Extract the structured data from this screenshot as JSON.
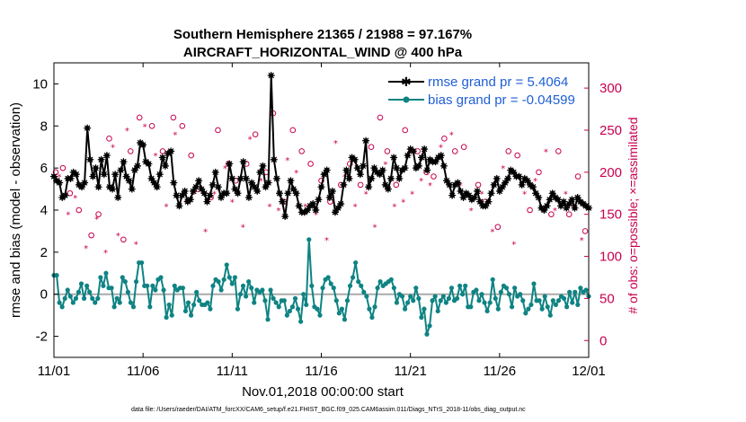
{
  "chart_data": {
    "type": "line",
    "title_line1": "Southern Hemisphere 21365 / 21988 = 97.167%",
    "title_line2": "AIRCRAFT_HORIZONTAL_WIND @ 400 hPa",
    "xlabel": "Nov.01,2018 00:00:00 start",
    "ylabel": "rmse and bias (model - observation)",
    "y2label": "# of obs: o=possible; ×=assimilated",
    "footer": "data file: /Users/raeder/DAI/ATM_forcXX/CAM6_setup/f.e21.FHIST_BGC.f09_025.CAM6assim.011/Diags_NTrS_2018-11/obs_diag_output.nc",
    "x_ticks": [
      "11/01",
      "11/06",
      "11/11",
      "11/16",
      "11/21",
      "11/26",
      "12/01"
    ],
    "x_range_days": [
      0,
      30
    ],
    "ylim": [
      -3,
      11
    ],
    "y_ticks": [
      "-2",
      "0",
      "2",
      "4",
      "6",
      "8",
      "10"
    ],
    "y2lim": [
      -20,
      330
    ],
    "y2_ticks": [
      "0",
      "50",
      "100",
      "150",
      "200",
      "250",
      "300"
    ],
    "colors": {
      "rmse": "#000000",
      "bias": "#0f8383",
      "obs": "#c8004f",
      "zero_line": "#aaaaaa",
      "legend_text": "#1f5fd6"
    },
    "series": [
      {
        "name": "rmse grand pr = 5.4064",
        "values": [
          5.6,
          5.4,
          5.3,
          4.6,
          4.7,
          5.5,
          5.5,
          5.8,
          5.7,
          5.2,
          5.1,
          5.3,
          7.9,
          6.4,
          5.6,
          6.0,
          5.1,
          6.4,
          5.7,
          6.6,
          5.1,
          5.0,
          5.7,
          4.6,
          5.9,
          6.3,
          5.6,
          5.4,
          5.0,
          5.9,
          6.1,
          7.2,
          7.1,
          6.3,
          6.2,
          5.5,
          5.3,
          5.1,
          5.7,
          6.5,
          6.1,
          6.7,
          6.8,
          5.3,
          4.7,
          4.2,
          4.7,
          4.9,
          4.4,
          4.5,
          4.9,
          5.1,
          5.4,
          5.0,
          4.8,
          4.4,
          4.7,
          5.2,
          5.8,
          5.1,
          4.6,
          4.8,
          4.8,
          6.2,
          5.5,
          5.0,
          4.8,
          5.5,
          6.3,
          5.5,
          4.6,
          5.3,
          5.1,
          4.9,
          5.8,
          6.1,
          5.1,
          5.3,
          10.4,
          6.4,
          5.5,
          4.8,
          4.4,
          3.7,
          4.8,
          5.4,
          5.0,
          4.8,
          4.2,
          3.9,
          3.9,
          4.0,
          4.2,
          4.3,
          4.0,
          4.5,
          5.1,
          5.7,
          5.9,
          4.6,
          4.9,
          3.9,
          4.1,
          4.3,
          5.2,
          5.9,
          5.5,
          6.5,
          6.4,
          6.0,
          5.7,
          6.1,
          7.3,
          5.1,
          5.5,
          6.0,
          5.8,
          5.7,
          5.9,
          5.2,
          5.0,
          5.5,
          6.5,
          6.0,
          5.5,
          5.9,
          6.0,
          6.6,
          6.9,
          6.8,
          6.0,
          6.1,
          6.5,
          6.9,
          5.9,
          6.4,
          6.3,
          6.3,
          6.5,
          6.6,
          6.1,
          5.4,
          5.2,
          4.7,
          5.2,
          5.3,
          4.9,
          4.6,
          4.8,
          4.7,
          4.5,
          4.6,
          4.9,
          4.4,
          4.2,
          4.2,
          4.4,
          4.8,
          5.2,
          5.5,
          4.9,
          5.1,
          5.3,
          5.5,
          5.9,
          5.8,
          5.6,
          5.6,
          5.2,
          5.5,
          5.4,
          5.2,
          5.1,
          4.8,
          4.6,
          4.1,
          4.0,
          4.2,
          4.5,
          4.8,
          4.6,
          4.5,
          4.2,
          4.4,
          4.1,
          4.3,
          4.5,
          4.1,
          4.6,
          4.4,
          4.3,
          4.2,
          4.1
        ]
      },
      {
        "name": "bias grand pr = -0.04599",
        "values": [
          0.9,
          0.9,
          -0.4,
          -0.6,
          -0.2,
          0.2,
          -0.1,
          -0.4,
          -0.2,
          0.1,
          0.5,
          -0.2,
          0.4,
          0.1,
          -0.2,
          -0.4,
          -0.2,
          0.8,
          0.4,
          1.0,
          0.3,
          0.3,
          -0.6,
          -0.2,
          -0.4,
          0.8,
          0.6,
          0.1,
          -0.4,
          -0.6,
          0.6,
          1.5,
          1.5,
          0.4,
          0.4,
          -0.6,
          0.4,
          0.2,
          0.7,
          0.8,
          0.2,
          -1.1,
          -0.5,
          -1.0,
          0.4,
          0.2,
          0.3,
          0.3,
          -0.8,
          -0.4,
          -1.0,
          -0.5,
          0.1,
          -0.3,
          -0.5,
          -0.5,
          -0.4,
          -0.7,
          0.4,
          0.7,
          0.6,
          0.2,
          0.7,
          1.4,
          0.8,
          0.5,
          0.8,
          -0.7,
          0.0,
          0.4,
          -0.1,
          0.6,
          0.3,
          -0.4,
          0.2,
          0.1,
          0.2,
          -0.3,
          -1.2,
          0.2,
          -0.2,
          -0.4,
          -0.6,
          -0.3,
          -0.3,
          -1.0,
          -0.8,
          -0.6,
          -0.2,
          -0.7,
          -1.3,
          0.0,
          -0.5,
          2.6,
          0.4,
          -0.6,
          -0.7,
          -1.0,
          0.3,
          0.7,
          0.8,
          0.5,
          0.3,
          -0.3,
          -0.9,
          -0.7,
          -1.2,
          -0.3,
          0.4,
          0.8,
          1.5,
          0.6,
          0.4,
          0.1,
          -0.1,
          -0.7,
          -1.1,
          -0.6,
          0.3,
          0.6,
          0.4,
          0.5,
          0.6,
          0.7,
          0.3,
          -0.4,
          0.0,
          -0.1,
          -0.7,
          -0.4,
          -0.1,
          -0.3,
          0.3,
          -0.2,
          -1.1,
          -0.7,
          -1.9,
          -1.5,
          -0.3,
          -0.1,
          -0.8,
          -0.3,
          -0.1,
          -0.4,
          -0.2,
          0.3,
          -0.3,
          -0.2,
          0.4,
          0.0,
          0.4,
          -0.6,
          -0.6,
          0.1,
          0.2,
          -0.3,
          0.0,
          -0.4,
          -0.8,
          -0.4,
          0.7,
          -0.2,
          -0.7,
          0.1,
          0.4,
          0.3,
          0.0,
          -0.6,
          0.3,
          -0.1,
          0.0,
          -0.3,
          -0.9,
          -0.7,
          -0.5,
          0.5,
          -0.3,
          -0.3,
          -0.7,
          -0.1,
          -0.6,
          -1.0,
          -0.3,
          -0.5,
          -0.3,
          -0.1,
          -0.2,
          -0.6,
          0.1,
          -0.4,
          0.1,
          -0.5,
          0.3,
          0.1,
          0.2,
          -0.1
        ]
      }
    ],
    "obs_possible": [
      {
        "d": 0.1,
        "n": 200
      },
      {
        "d": 0.5,
        "n": 205
      },
      {
        "d": 0.9,
        "n": 175
      },
      {
        "d": 1.4,
        "n": 155
      },
      {
        "d": 2.1,
        "n": 125
      },
      {
        "d": 2.5,
        "n": 150
      },
      {
        "d": 3.1,
        "n": 240
      },
      {
        "d": 3.9,
        "n": 120
      },
      {
        "d": 4.3,
        "n": 225
      },
      {
        "d": 4.8,
        "n": 265
      },
      {
        "d": 5.5,
        "n": 255
      },
      {
        "d": 6.1,
        "n": 225
      },
      {
        "d": 6.7,
        "n": 265
      },
      {
        "d": 7.2,
        "n": 255
      },
      {
        "d": 7.7,
        "n": 220
      },
      {
        "d": 8.1,
        "n": 180
      },
      {
        "d": 8.8,
        "n": 170
      },
      {
        "d": 9.2,
        "n": 250
      },
      {
        "d": 9.8,
        "n": 210
      },
      {
        "d": 10.2,
        "n": 190
      },
      {
        "d": 10.8,
        "n": 210
      },
      {
        "d": 11.3,
        "n": 245
      },
      {
        "d": 11.9,
        "n": 200
      },
      {
        "d": 12.3,
        "n": 270
      },
      {
        "d": 12.9,
        "n": 165
      },
      {
        "d": 13.4,
        "n": 250
      },
      {
        "d": 13.9,
        "n": 225
      },
      {
        "d": 14.4,
        "n": 210
      },
      {
        "d": 15.0,
        "n": 190
      },
      {
        "d": 15.5,
        "n": 165
      },
      {
        "d": 16.1,
        "n": 185
      },
      {
        "d": 16.6,
        "n": 210
      },
      {
        "d": 17.2,
        "n": 185
      },
      {
        "d": 17.8,
        "n": 230
      },
      {
        "d": 18.3,
        "n": 265
      },
      {
        "d": 18.7,
        "n": 225
      },
      {
        "d": 19.2,
        "n": 185
      },
      {
        "d": 19.7,
        "n": 250
      },
      {
        "d": 20.4,
        "n": 225
      },
      {
        "d": 20.9,
        "n": 200
      },
      {
        "d": 21.3,
        "n": 195
      },
      {
        "d": 21.9,
        "n": 240
      },
      {
        "d": 22.5,
        "n": 225
      },
      {
        "d": 23.0,
        "n": 230
      },
      {
        "d": 23.8,
        "n": 185
      },
      {
        "d": 24.2,
        "n": 165
      },
      {
        "d": 24.9,
        "n": 135
      },
      {
        "d": 25.5,
        "n": 225
      },
      {
        "d": 26.0,
        "n": 220
      },
      {
        "d": 26.7,
        "n": 155
      },
      {
        "d": 27.2,
        "n": 200
      },
      {
        "d": 27.9,
        "n": 150
      },
      {
        "d": 28.3,
        "n": 225
      },
      {
        "d": 28.9,
        "n": 150
      },
      {
        "d": 29.4,
        "n": 195
      },
      {
        "d": 29.8,
        "n": 130
      }
    ],
    "obs_assimilated": [
      {
        "d": 0.3,
        "n": 195
      },
      {
        "d": 0.8,
        "n": 150
      },
      {
        "d": 1.2,
        "n": 170
      },
      {
        "d": 1.8,
        "n": 110
      },
      {
        "d": 2.4,
        "n": 145
      },
      {
        "d": 2.9,
        "n": 105
      },
      {
        "d": 3.3,
        "n": 230
      },
      {
        "d": 3.6,
        "n": 125
      },
      {
        "d": 4.1,
        "n": 250
      },
      {
        "d": 4.6,
        "n": 115
      },
      {
        "d": 5.1,
        "n": 255
      },
      {
        "d": 5.7,
        "n": 220
      },
      {
        "d": 6.3,
        "n": 160
      },
      {
        "d": 6.8,
        "n": 245
      },
      {
        "d": 7.4,
        "n": 165
      },
      {
        "d": 7.9,
        "n": 175
      },
      {
        "d": 8.5,
        "n": 130
      },
      {
        "d": 9.0,
        "n": 175
      },
      {
        "d": 9.6,
        "n": 205
      },
      {
        "d": 10.0,
        "n": 165
      },
      {
        "d": 10.6,
        "n": 135
      },
      {
        "d": 11.0,
        "n": 240
      },
      {
        "d": 11.6,
        "n": 190
      },
      {
        "d": 12.1,
        "n": 160
      },
      {
        "d": 12.6,
        "n": 155
      },
      {
        "d": 13.1,
        "n": 215
      },
      {
        "d": 13.6,
        "n": 200
      },
      {
        "d": 14.1,
        "n": 160
      },
      {
        "d": 14.7,
        "n": 150
      },
      {
        "d": 15.3,
        "n": 120
      },
      {
        "d": 15.8,
        "n": 235
      },
      {
        "d": 16.3,
        "n": 195
      },
      {
        "d": 16.9,
        "n": 160
      },
      {
        "d": 17.5,
        "n": 175
      },
      {
        "d": 18.0,
        "n": 135
      },
      {
        "d": 18.6,
        "n": 210
      },
      {
        "d": 19.1,
        "n": 160
      },
      {
        "d": 19.6,
        "n": 165
      },
      {
        "d": 20.1,
        "n": 175
      },
      {
        "d": 20.6,
        "n": 190
      },
      {
        "d": 21.1,
        "n": 185
      },
      {
        "d": 21.7,
        "n": 230
      },
      {
        "d": 22.3,
        "n": 245
      },
      {
        "d": 22.8,
        "n": 185
      },
      {
        "d": 23.4,
        "n": 155
      },
      {
        "d": 24.0,
        "n": 175
      },
      {
        "d": 24.6,
        "n": 130
      },
      {
        "d": 25.2,
        "n": 205
      },
      {
        "d": 25.8,
        "n": 115
      },
      {
        "d": 26.4,
        "n": 175
      },
      {
        "d": 27.0,
        "n": 190
      },
      {
        "d": 27.6,
        "n": 225
      },
      {
        "d": 28.1,
        "n": 155
      },
      {
        "d": 28.7,
        "n": 175
      },
      {
        "d": 29.1,
        "n": 160
      },
      {
        "d": 29.6,
        "n": 120
      }
    ]
  }
}
